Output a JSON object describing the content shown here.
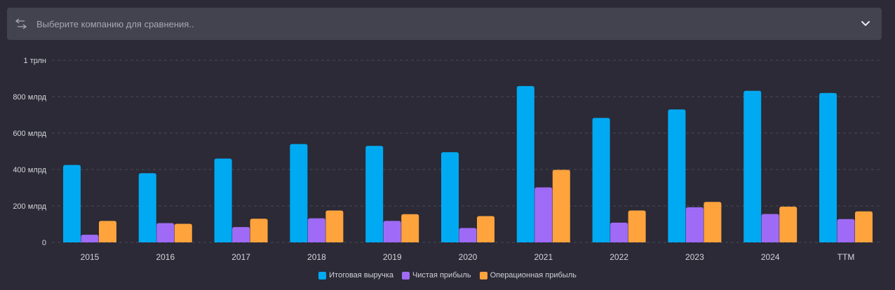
{
  "compare": {
    "placeholder": "Выберите компанию для сравнения.."
  },
  "colors": {
    "revenue": "#00aaf2",
    "net_income": "#9f6bf6",
    "operating_income": "#ffa33c",
    "background": "#2b2a36",
    "panel": "#434350"
  },
  "icons": {
    "left": "swap-arrows-icon",
    "right": "chevron-down-icon"
  },
  "chart_data": {
    "type": "bar",
    "categories": [
      "2015",
      "2016",
      "2017",
      "2018",
      "2019",
      "2020",
      "2021",
      "2022",
      "2023",
      "2024",
      "TTM"
    ],
    "series": [
      {
        "name": "Итоговая выручка",
        "values": [
          425,
          380,
          460,
          540,
          530,
          495,
          858,
          683,
          730,
          832,
          820
        ]
      },
      {
        "name": "Чистая прибыль",
        "values": [
          42,
          106,
          84,
          132,
          118,
          79,
          302,
          108,
          193,
          156,
          128
        ]
      },
      {
        "name": "Операционная прибыль",
        "values": [
          118,
          102,
          130,
          175,
          155,
          144,
          398,
          175,
          222,
          196,
          170
        ]
      }
    ],
    "y_ticks": [
      {
        "value": 0,
        "label": "0"
      },
      {
        "value": 200,
        "label": "200 млрд"
      },
      {
        "value": 400,
        "label": "400 млрд"
      },
      {
        "value": 600,
        "label": "600 млрд"
      },
      {
        "value": 800,
        "label": "800 млрд"
      },
      {
        "value": 1000,
        "label": "1 трлн"
      }
    ],
    "ylim": [
      0,
      1000
    ],
    "grid": true,
    "legend_position": "bottom-center",
    "title": "",
    "xlabel": "",
    "ylabel": ""
  }
}
